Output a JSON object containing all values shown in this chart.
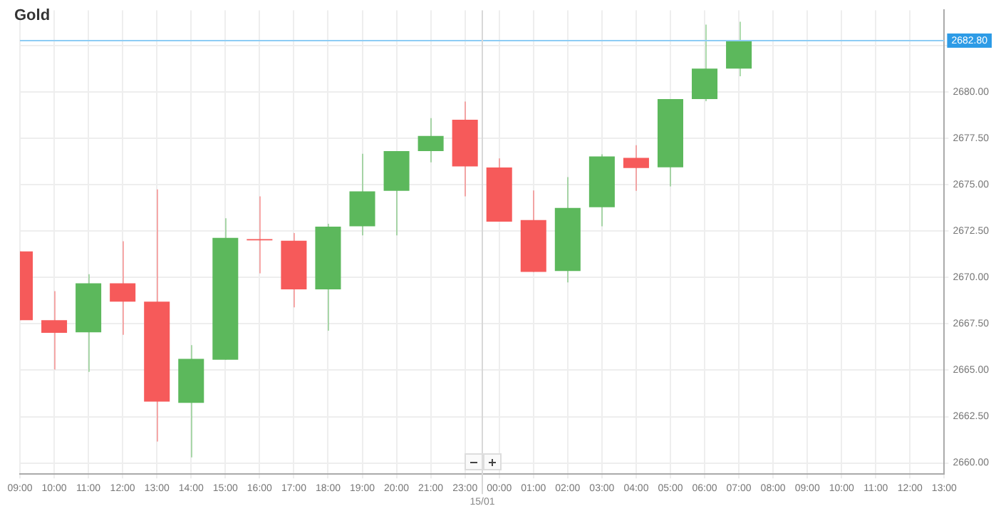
{
  "chart_data": {
    "type": "candlestick",
    "title": "Gold",
    "categories": [
      "09:00",
      "10:00",
      "11:00",
      "12:00",
      "13:00",
      "14:00",
      "15:00",
      "16:00",
      "17:00",
      "18:00",
      "19:00",
      "20:00",
      "21:00",
      "23:00",
      "00:00",
      "01:00",
      "02:00",
      "03:00",
      "04:00",
      "05:00",
      "06:00",
      "07:00",
      "08:00",
      "09:00",
      "10:00",
      "11:00",
      "12:00",
      "13:00"
    ],
    "ohlc": [
      [
        2671.4,
        2671.4,
        2667.7,
        2667.7
      ],
      [
        2667.7,
        2669.26,
        2665.04,
        2667.01
      ],
      [
        2667.04,
        2670.17,
        2664.91,
        2669.68
      ],
      [
        2669.68,
        2671.95,
        2666.91,
        2668.69
      ],
      [
        2668.69,
        2674.74,
        2661.16,
        2663.31
      ],
      [
        2663.24,
        2666.35,
        2660.3,
        2665.61
      ],
      [
        2665.56,
        2673.19,
        2665.56,
        2672.13
      ],
      [
        2672.07,
        2674.37,
        2670.22,
        2672.0
      ],
      [
        2671.98,
        2672.39,
        2668.39,
        2669.36
      ],
      [
        2669.36,
        2672.89,
        2667.13,
        2672.74
      ],
      [
        2672.76,
        2676.67,
        2672.27,
        2674.64
      ],
      [
        2674.67,
        2676.81,
        2672.27,
        2676.81
      ],
      [
        2676.81,
        2678.59,
        2676.2,
        2677.63
      ],
      [
        2678.5,
        2679.48,
        2674.37,
        2675.98
      ],
      [
        2675.93,
        2676.42,
        2673.01,
        2673.01
      ],
      [
        2673.09,
        2674.69,
        2670.3,
        2670.3
      ],
      [
        2670.35,
        2675.41,
        2669.73,
        2673.75
      ],
      [
        2673.78,
        2676.64,
        2672.76,
        2676.52
      ],
      [
        2676.44,
        2677.13,
        2674.67,
        2675.9
      ],
      [
        2675.94,
        2679.61,
        2674.91,
        2679.61
      ],
      [
        2679.61,
        2683.63,
        2679.5,
        2681.26
      ],
      [
        2681.26,
        2683.78,
        2680.84,
        2682.78
      ],
      null,
      null,
      null,
      null,
      null,
      null
    ],
    "colors": [
      "#f65a5a",
      "#f65a5a",
      "#5cb85c",
      "#f65a5a",
      "#f65a5a",
      "#5cb85c",
      "#5cb85c",
      "#f65a5a",
      "#f65a5a",
      "#5cb85c",
      "#5cb85c",
      "#5cb85c",
      "#5cb85c",
      "#f65a5a",
      "#f65a5a",
      "#f65a5a",
      "#5cb85c",
      "#5cb85c",
      "#f65a5a",
      "#5cb85c",
      "#5cb85c",
      "#5cb85c",
      null,
      null,
      null,
      null,
      null,
      null
    ],
    "ylim": [
      2659.4,
      2684.4
    ],
    "yticks": [
      {
        "value": 2660,
        "label": "2660.00"
      },
      {
        "value": 2662.5,
        "label": "2662.50"
      },
      {
        "value": 2665,
        "label": "2665.00"
      },
      {
        "value": 2667.5,
        "label": "2667.50"
      },
      {
        "value": 2670,
        "label": "2670.00"
      },
      {
        "value": 2672.5,
        "label": "2672.50"
      },
      {
        "value": 2675,
        "label": "2675.00"
      },
      {
        "value": 2677.5,
        "label": "2677.50"
      },
      {
        "value": 2680,
        "label": "2680.00"
      },
      {
        "value": 2682.5,
        "label": null
      }
    ],
    "ref_lines": [
      {
        "axis": "y",
        "value": 2682.8,
        "label": "2682.80",
        "color": "#8ecdf5"
      },
      {
        "axis": "x",
        "value": "00:00",
        "label": "15/01",
        "color": "#d8d8d8"
      }
    ],
    "grid": true,
    "legend": false
  }
}
